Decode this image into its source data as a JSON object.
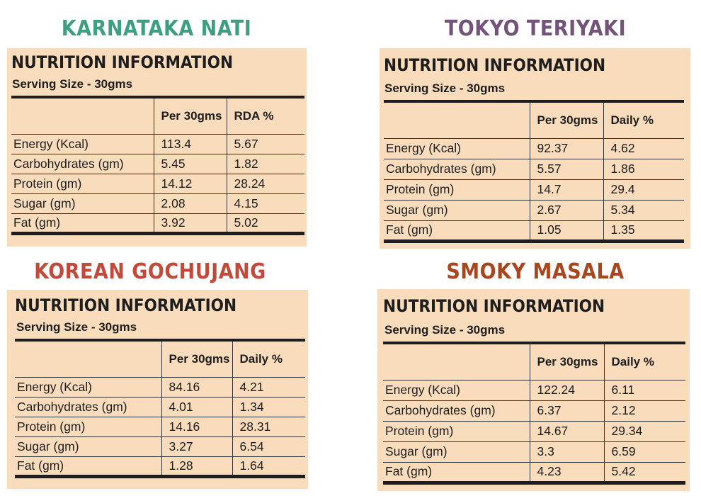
{
  "panels": [
    {
      "title": "KARNATAKA NATI",
      "title_color": "#3f9e80",
      "heading": "NUTRITION INFORMATION",
      "serving": "Serving Size - 30gms",
      "col_per": "Per 30gms",
      "col_pct": "RDA %",
      "rows": [
        {
          "name": "Energy  (Kcal)",
          "per": "113.4",
          "pct": "5.67"
        },
        {
          "name": "Carbohydrates (gm)",
          "per": "5.45",
          "pct": "1.82"
        },
        {
          "name": "Protein (gm)",
          "per": "14.12",
          "pct": "28.24"
        },
        {
          "name": "Sugar (gm)",
          "per": "2.08",
          "pct": "4.15"
        },
        {
          "name": "Fat (gm)",
          "per": "3.92",
          "pct": "5.02"
        }
      ]
    },
    {
      "title": "TOKYO TERIYAKI",
      "title_color": "#74537a",
      "heading": "NUTRITION INFORMATION",
      "serving": "Serving Size - 30gms",
      "col_per": "Per 30gms",
      "col_pct": "Daily %",
      "rows": [
        {
          "name": "Energy  (Kcal)",
          "per": "92.37",
          "pct": "4.62"
        },
        {
          "name": "Carbohydrates (gm)",
          "per": "5.57",
          "pct": "1.86"
        },
        {
          "name": "Protein (gm)",
          "per": "14.7",
          "pct": "29.4"
        },
        {
          "name": "Sugar (gm)",
          "per": "2.67",
          "pct": "5.34"
        },
        {
          "name": "Fat (gm)",
          "per": "1.05",
          "pct": "1.35"
        }
      ]
    },
    {
      "title": "KOREAN GOCHUJANG",
      "title_color": "#c14a3b",
      "heading": "NUTRITION INFORMATION",
      "serving": "Serving Size - 30gms",
      "col_per": "Per 30gms",
      "col_pct": "Daily %",
      "rows": [
        {
          "name": "Energy  (Kcal)",
          "per": "84.16",
          "pct": "4.21"
        },
        {
          "name": "Carbohydrates (gm)",
          "per": "4.01",
          "pct": "1.34"
        },
        {
          "name": "Protein (gm)",
          "per": "14.16",
          "pct": "28.31"
        },
        {
          "name": "Sugar (gm)",
          "per": "3.27",
          "pct": "6.54"
        },
        {
          "name": "Fat (gm)",
          "per": "1.28",
          "pct": "1.64"
        }
      ]
    },
    {
      "title": "SMOKY MASALA",
      "title_color": "#a8461f",
      "heading": "NUTRITION INFORMATION",
      "serving": "Serving Size - 30gms",
      "col_per": "Per 30gms",
      "col_pct": "Daily %",
      "rows": [
        {
          "name": "Energy  (Kcal)",
          "per": "122.24",
          "pct": "6.11"
        },
        {
          "name": "Carbohydrates (gm)",
          "per": "6.37",
          "pct": "2.12"
        },
        {
          "name": "Protein (gm)",
          "per": "14.67",
          "pct": "29.34"
        },
        {
          "name": "Sugar (gm)",
          "per": "3.3",
          "pct": "6.59"
        },
        {
          "name": "Fat (gm)",
          "per": "4.23",
          "pct": "5.42"
        }
      ]
    }
  ]
}
